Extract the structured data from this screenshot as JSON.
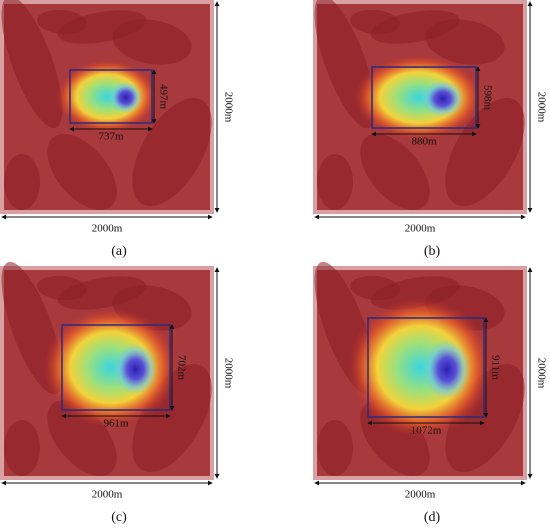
{
  "panels": [
    {
      "label": "(a)",
      "box_width": "737m",
      "box_height": "497m",
      "domain_width": "2000m",
      "domain_height": "2000m"
    },
    {
      "label": "(b)",
      "box_width": "880m",
      "box_height": "598m",
      "domain_width": "2000m",
      "domain_height": "2000m"
    },
    {
      "label": "(c)",
      "box_width": "961m",
      "box_height": "702m",
      "domain_width": "2000m",
      "domain_height": "2000m"
    },
    {
      "label": "(d)",
      "box_width": "1072m",
      "box_height": "911m",
      "domain_width": "2000m",
      "domain_height": "2000m"
    }
  ]
}
